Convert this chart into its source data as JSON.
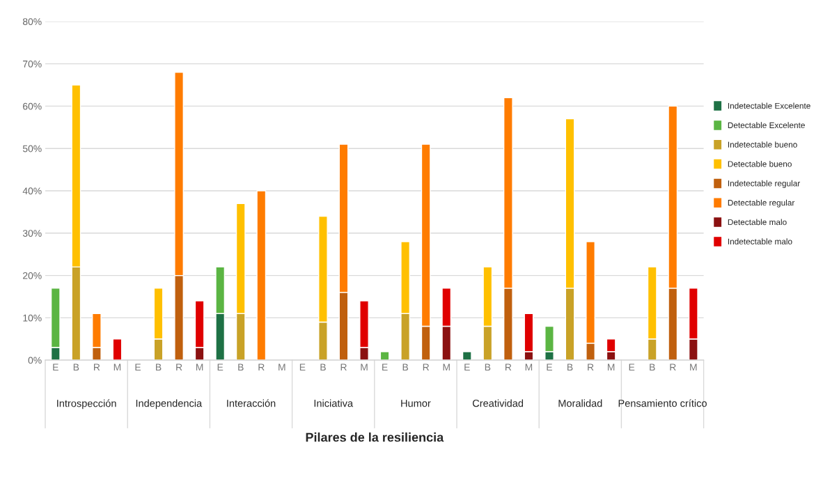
{
  "chart_data": {
    "type": "bar",
    "stacked": true,
    "xlabel": "Pilares de la resiliencia",
    "categories": [
      "E",
      "B",
      "R",
      "M",
      "E",
      "B",
      "R",
      "M",
      "E",
      "B",
      "R",
      "M",
      "E",
      "B",
      "R",
      "M",
      "E",
      "B",
      "R",
      "M",
      "E",
      "B",
      "R",
      "M",
      "E",
      "B",
      "R",
      "M",
      "E",
      "B",
      "R",
      "M"
    ],
    "series": [
      {
        "name": "Indetectable Excelente",
        "color": "#1e7145",
        "values": [
          3,
          null,
          null,
          null,
          null,
          null,
          null,
          null,
          11,
          null,
          null,
          null,
          null,
          null,
          null,
          null,
          null,
          null,
          null,
          null,
          2,
          null,
          null,
          null,
          2,
          null,
          null,
          null,
          null,
          null,
          null,
          null
        ]
      },
      {
        "name": "Detectable Excelente",
        "color": "#5bb543",
        "values": [
          14,
          null,
          null,
          null,
          null,
          null,
          null,
          null,
          11,
          null,
          null,
          null,
          null,
          null,
          null,
          null,
          2,
          null,
          null,
          null,
          null,
          null,
          null,
          null,
          6,
          null,
          null,
          null,
          null,
          null,
          null,
          null
        ]
      },
      {
        "name": "Indetectable bueno",
        "color": "#c9a227",
        "values": [
          null,
          22,
          null,
          null,
          null,
          5,
          null,
          null,
          null,
          11,
          null,
          null,
          null,
          9,
          null,
          null,
          null,
          11,
          null,
          null,
          null,
          8,
          null,
          null,
          null,
          17,
          null,
          null,
          null,
          5,
          null,
          null
        ]
      },
      {
        "name": "Detectable bueno",
        "color": "#ffc000",
        "values": [
          null,
          43,
          null,
          null,
          null,
          12,
          null,
          null,
          null,
          26,
          null,
          null,
          null,
          25,
          null,
          null,
          null,
          17,
          null,
          null,
          null,
          14,
          null,
          null,
          null,
          40,
          null,
          null,
          null,
          17,
          null,
          null
        ]
      },
      {
        "name": "Indetectable regular",
        "color": "#c0600e",
        "values": [
          null,
          null,
          3,
          null,
          null,
          null,
          20,
          null,
          null,
          null,
          null,
          null,
          null,
          null,
          16,
          null,
          null,
          null,
          8,
          null,
          null,
          null,
          17,
          null,
          null,
          null,
          4,
          null,
          null,
          null,
          17,
          null
        ]
      },
      {
        "name": "Detectable regular",
        "color": "#ff7c00",
        "values": [
          null,
          null,
          8,
          null,
          null,
          null,
          48,
          null,
          null,
          null,
          40,
          null,
          null,
          null,
          35,
          null,
          null,
          null,
          43,
          null,
          null,
          null,
          45,
          null,
          null,
          null,
          24,
          null,
          null,
          null,
          43,
          null
        ]
      },
      {
        "name": "Detectable malo",
        "color": "#8b1111",
        "values": [
          null,
          null,
          null,
          null,
          null,
          null,
          null,
          3,
          null,
          null,
          null,
          null,
          null,
          null,
          null,
          3,
          null,
          null,
          null,
          8,
          null,
          null,
          null,
          2,
          null,
          null,
          null,
          2,
          null,
          null,
          null,
          5
        ]
      },
      {
        "name": "Indetectable malo",
        "color": "#e00000",
        "values": [
          null,
          null,
          null,
          5,
          null,
          null,
          null,
          11,
          null,
          null,
          null,
          null,
          null,
          null,
          null,
          11,
          null,
          null,
          null,
          9,
          null,
          null,
          null,
          9,
          null,
          null,
          null,
          3,
          null,
          null,
          null,
          12
        ]
      }
    ],
    "ylim": [
      0,
      80
    ],
    "yticks": [
      {
        "value": 0,
        "label": "0%"
      },
      {
        "value": 10,
        "label": "10%"
      },
      {
        "value": 20,
        "label": "20%"
      },
      {
        "value": 30,
        "label": "30%"
      },
      {
        "value": 40,
        "label": "40%"
      },
      {
        "value": 50,
        "label": "50%"
      },
      {
        "value": 60,
        "label": "60%"
      },
      {
        "value": 70,
        "label": "70%"
      },
      {
        "value": 80,
        "label": "80%"
      }
    ],
    "grid": "y",
    "legend": "right",
    "annotations": [
      "Introspección",
      "Independencia",
      "Interacción",
      "Iniciativa",
      "Humor",
      "Creatividad",
      "Moralidad",
      "Pensamiento crítico"
    ]
  }
}
